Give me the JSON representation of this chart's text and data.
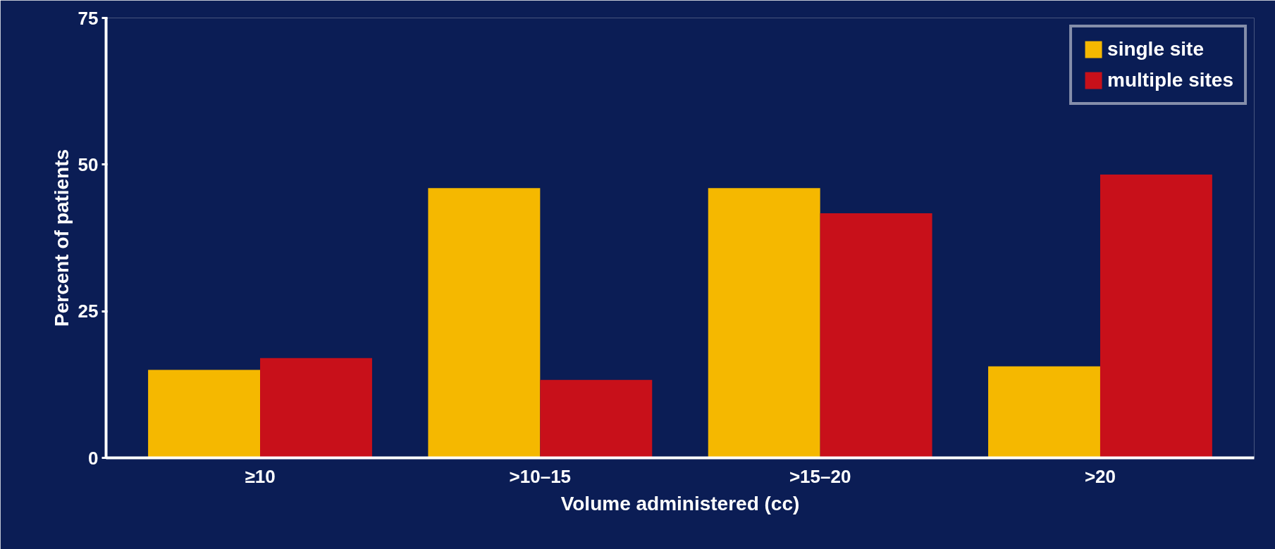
{
  "chart_data": {
    "type": "bar",
    "xlabel": "Volume administered (cc)",
    "ylabel": "Percent of patients",
    "categories": [
      "≥10",
      ">10–15",
      ">15–20",
      ">20"
    ],
    "series": [
      {
        "name": "single site",
        "color": "#f5b800",
        "values": [
          15,
          46,
          46,
          15.6
        ]
      },
      {
        "name": "multiple sites",
        "color": "#c8101a",
        "values": [
          17,
          13.3,
          41.7,
          48.3
        ]
      }
    ],
    "ylim": [
      0,
      75
    ],
    "yticks": [
      0,
      25,
      50,
      75
    ],
    "grid": false,
    "legend": "top right"
  }
}
